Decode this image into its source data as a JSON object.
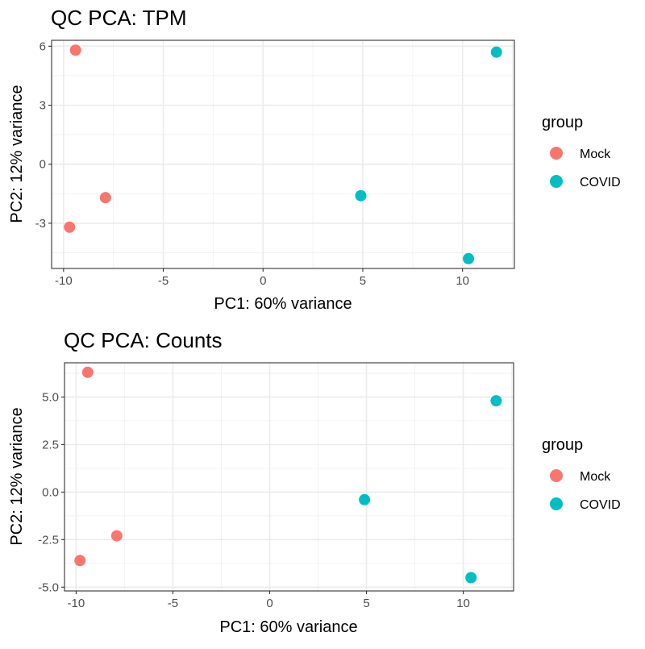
{
  "chart_data": [
    {
      "type": "scatter",
      "title": "QC PCA: TPM",
      "xlabel": "PC1: 60% variance",
      "ylabel": "PC2: 12% variance",
      "xlim": [
        -10.6,
        12.6
      ],
      "ylim": [
        -5.3,
        6.3
      ],
      "xticks": [
        -10,
        -5,
        0,
        5,
        10
      ],
      "xtick_labels": [
        "-10",
        "-5",
        "0",
        "5",
        "10"
      ],
      "yticks": [
        -3,
        0,
        3,
        6
      ],
      "ytick_labels": [
        "-3",
        "0",
        "3",
        "6"
      ],
      "grid": true,
      "legend": {
        "title": "group",
        "position": "right"
      },
      "series": [
        {
          "name": "Mock",
          "color": "#F8766D",
          "x": [
            -9.4,
            -7.9,
            -9.7
          ],
          "y": [
            5.8,
            -1.7,
            -3.2
          ]
        },
        {
          "name": "COVID",
          "color": "#00BFC4",
          "x": [
            11.7,
            4.9,
            10.3
          ],
          "y": [
            5.7,
            -1.6,
            -4.8
          ]
        }
      ]
    },
    {
      "type": "scatter",
      "title": "QC PCA: Counts",
      "xlabel": "PC1: 60% variance",
      "ylabel": "PC2: 12% variance",
      "xlim": [
        -10.6,
        12.6
      ],
      "ylim": [
        -5.2,
        6.8
      ],
      "xticks": [
        -10,
        -5,
        0,
        5,
        10
      ],
      "xtick_labels": [
        "-10",
        "-5",
        "0",
        "5",
        "10"
      ],
      "yticks": [
        -5,
        -2.5,
        0,
        2.5,
        5
      ],
      "ytick_labels": [
        "-5.0",
        "-2.5",
        "0.0",
        "2.5",
        "5.0"
      ],
      "grid": true,
      "legend": {
        "title": "group",
        "position": "right"
      },
      "series": [
        {
          "name": "Mock",
          "color": "#F8766D",
          "x": [
            -9.4,
            -7.9,
            -9.8
          ],
          "y": [
            6.3,
            -2.3,
            -3.6
          ]
        },
        {
          "name": "COVID",
          "color": "#00BFC4",
          "x": [
            11.7,
            4.9,
            10.4
          ],
          "y": [
            4.8,
            -0.4,
            -4.5
          ]
        }
      ]
    }
  ]
}
